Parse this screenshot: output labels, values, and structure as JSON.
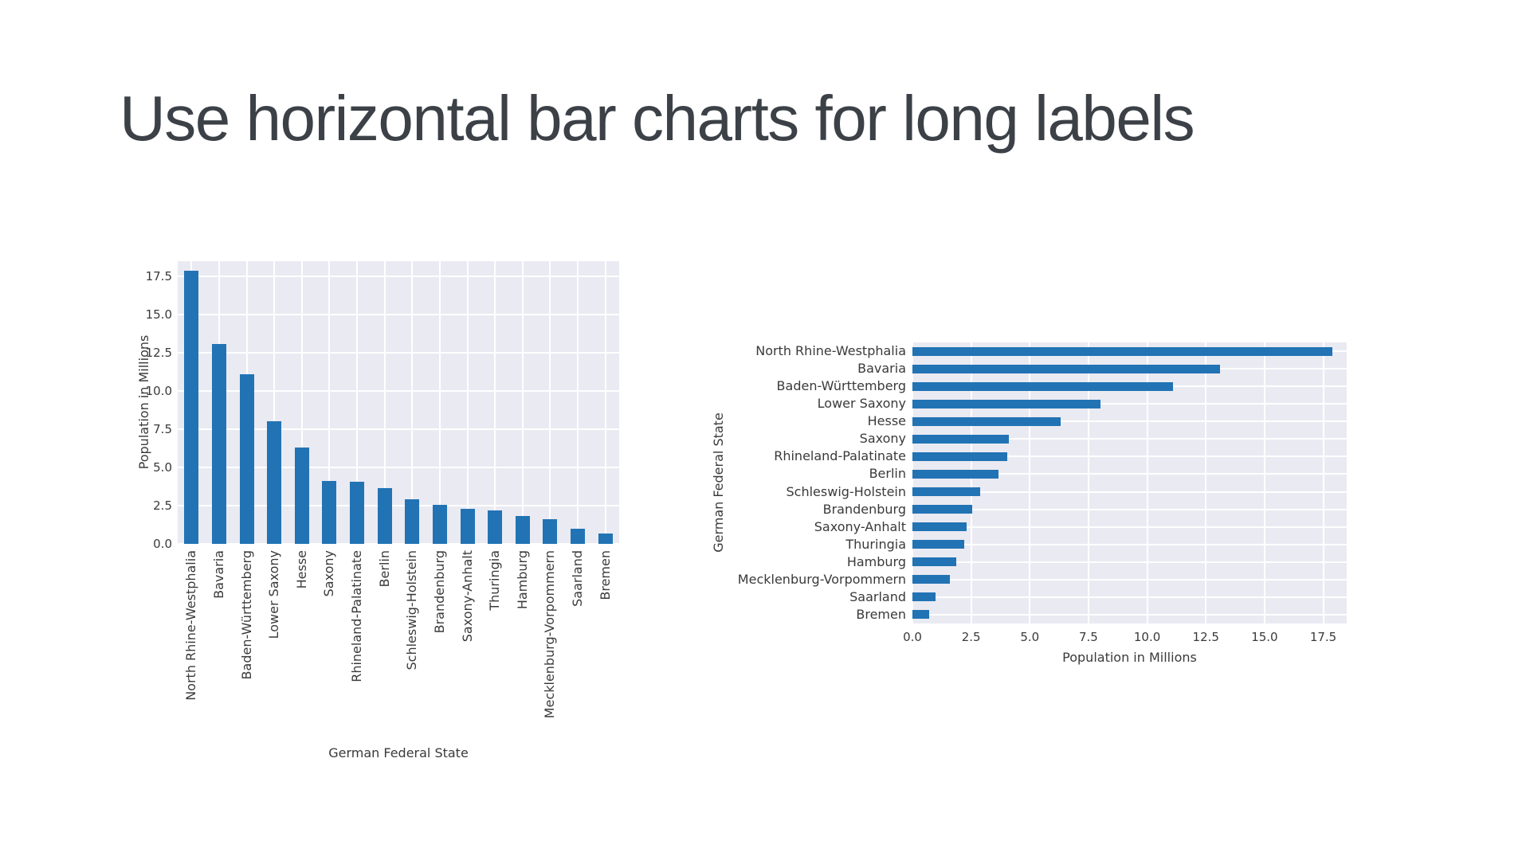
{
  "slide": {
    "title": "Use horizontal bar charts for long labels"
  },
  "colors": {
    "bar": "#2173b4",
    "plot_bg": "#eaeaf2",
    "grid": "#ffffff",
    "text": "#3a3a3a",
    "title": "#3c4147"
  },
  "chart_data": [
    {
      "type": "bar",
      "orientation": "vertical",
      "categories": [
        "North Rhine-Westphalia",
        "Bavaria",
        "Baden-Württemberg",
        "Lower Saxony",
        "Hesse",
        "Saxony",
        "Rhineland-Palatinate",
        "Berlin",
        "Schleswig-Holstein",
        "Brandenburg",
        "Saxony-Anhalt",
        "Thuringia",
        "Hamburg",
        "Mecklenburg-Vorpommern",
        "Saarland",
        "Bremen"
      ],
      "values": [
        17.9,
        13.1,
        11.1,
        8.0,
        6.3,
        4.1,
        4.05,
        3.65,
        2.9,
        2.55,
        2.3,
        2.2,
        1.85,
        1.6,
        1.0,
        0.7
      ],
      "xlabel": "German Federal State",
      "ylabel": "Population in Millions",
      "yticks": [
        0.0,
        2.5,
        5.0,
        7.5,
        10.0,
        12.5,
        15.0,
        17.5
      ],
      "ylim": [
        0,
        18.5
      ],
      "grid": true,
      "legend": "none"
    },
    {
      "type": "bar",
      "orientation": "horizontal",
      "categories": [
        "North Rhine-Westphalia",
        "Bavaria",
        "Baden-Württemberg",
        "Lower Saxony",
        "Hesse",
        "Saxony",
        "Rhineland-Palatinate",
        "Berlin",
        "Schleswig-Holstein",
        "Brandenburg",
        "Saxony-Anhalt",
        "Thuringia",
        "Hamburg",
        "Mecklenburg-Vorpommern",
        "Saarland",
        "Bremen"
      ],
      "values": [
        17.9,
        13.1,
        11.1,
        8.0,
        6.3,
        4.1,
        4.05,
        3.65,
        2.9,
        2.55,
        2.3,
        2.2,
        1.85,
        1.6,
        1.0,
        0.7
      ],
      "xlabel": "Population in Millions",
      "ylabel": "German Federal State",
      "xticks": [
        0.0,
        2.5,
        5.0,
        7.5,
        10.0,
        12.5,
        15.0,
        17.5
      ],
      "xlim": [
        0,
        18.5
      ],
      "grid": true,
      "legend": "none"
    }
  ]
}
